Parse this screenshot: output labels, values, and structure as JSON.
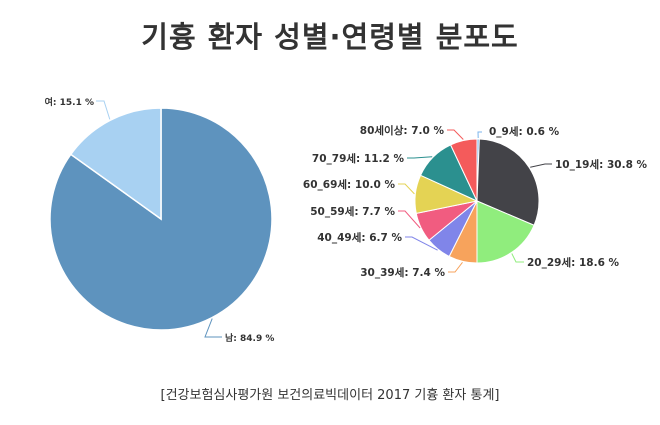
{
  "title": "기흉 환자 성별·연령별 분포도",
  "source": "[건강보험심사평가원 보건의료빅데이터 2017 기흉 환자 통계]",
  "chart_data": [
    {
      "type": "pie",
      "slices": [
        {
          "label": "남",
          "value": 84.9,
          "color": "#5e93be",
          "text": "남: 84.9 %"
        },
        {
          "label": "여",
          "value": 15.1,
          "color": "#a8d1f2",
          "text": "여: 15.1 %"
        }
      ]
    },
    {
      "type": "pie",
      "slices": [
        {
          "label": "0_9세",
          "value": 0.6,
          "color": "#7cb5ec",
          "text": "0_9세: 0.6 %"
        },
        {
          "label": "10_19세",
          "value": 30.8,
          "color": "#434348",
          "text": "10_19세: 30.8 %"
        },
        {
          "label": "20_29세",
          "value": 18.6,
          "color": "#90ed7d",
          "text": "20_29세: 18.6 %"
        },
        {
          "label": "30_39세",
          "value": 7.4,
          "color": "#f7a35c",
          "text": "30_39세: 7.4 %"
        },
        {
          "label": "40_49세",
          "value": 6.7,
          "color": "#8085e9",
          "text": "40_49세: 6.7 %"
        },
        {
          "label": "50_59세",
          "value": 7.7,
          "color": "#f15c80",
          "text": "50_59세: 7.7 %"
        },
        {
          "label": "60_69세",
          "value": 10.0,
          "color": "#e4d354",
          "text": "60_69세: 10.0 %"
        },
        {
          "label": "70_79세",
          "value": 11.2,
          "color": "#2b908f",
          "text": "70_79세: 11.2 %"
        },
        {
          "label": "80세이상",
          "value": 7.0,
          "color": "#f45b5b",
          "text": "80세이상: 7.0 %"
        }
      ]
    }
  ]
}
